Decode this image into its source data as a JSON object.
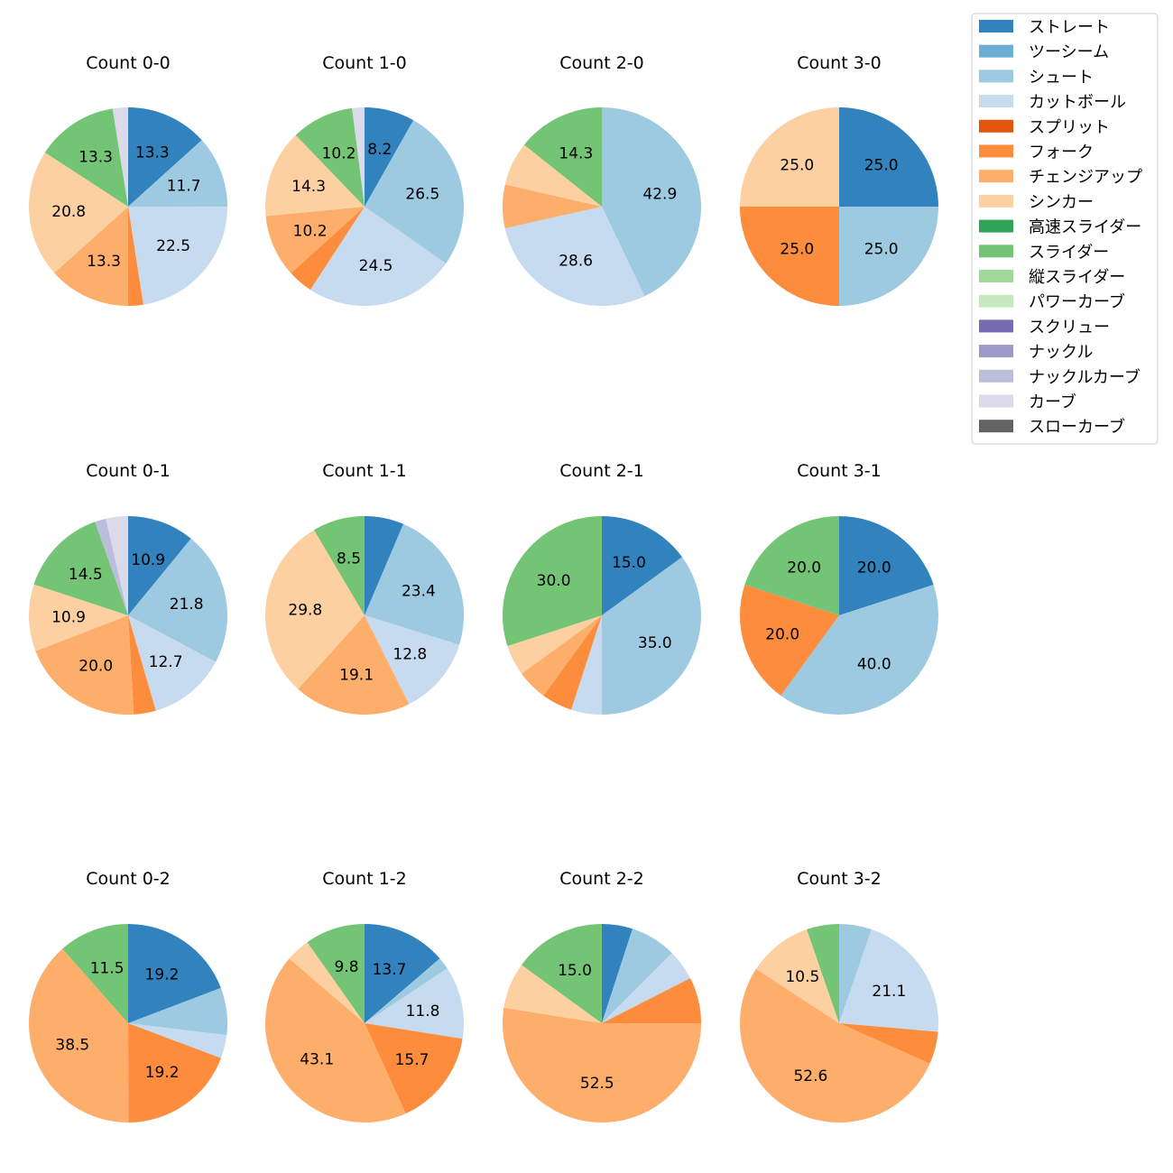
{
  "chart_data": {
    "type": "pie",
    "direction": "clockwise",
    "start": "top",
    "label_threshold_percent": 8,
    "legend": {
      "placement": "top-right",
      "entries": [
        {
          "name": "ストレート",
          "color": "#3182bd"
        },
        {
          "name": "ツーシーム",
          "color": "#6baed6"
        },
        {
          "name": "シュート",
          "color": "#9ecae1"
        },
        {
          "name": "カットボール",
          "color": "#c6dbef"
        },
        {
          "name": "スプリット",
          "color": "#e6550d"
        },
        {
          "name": "フォーク",
          "color": "#fd8d3c"
        },
        {
          "name": "チェンジアップ",
          "color": "#fdae6b"
        },
        {
          "name": "シンカー",
          "color": "#fdd0a2"
        },
        {
          "name": "高速スライダー",
          "color": "#31a354"
        },
        {
          "name": "スライダー",
          "color": "#74c476"
        },
        {
          "name": "縦スライダー",
          "color": "#a1d99b"
        },
        {
          "name": "パワーカーブ",
          "color": "#c7e9c0"
        },
        {
          "name": "スクリュー",
          "color": "#756bb1"
        },
        {
          "name": "ナックル",
          "color": "#9e9ac8"
        },
        {
          "name": "ナックルカーブ",
          "color": "#bcbddc"
        },
        {
          "name": "カーブ",
          "color": "#dadaeb"
        },
        {
          "name": "スローカーブ",
          "color": "#636363"
        }
      ]
    },
    "charts": [
      {
        "title": "Count 0-0",
        "slices": [
          [
            "ストレート",
            13.3
          ],
          [
            "シュート",
            11.7
          ],
          [
            "カットボール",
            22.5
          ],
          [
            "フォーク",
            2.5
          ],
          [
            "チェンジアップ",
            13.3
          ],
          [
            "シンカー",
            20.8
          ],
          [
            "スライダー",
            13.3
          ],
          [
            "カーブ",
            2.5
          ]
        ]
      },
      {
        "title": "Count 1-0",
        "slices": [
          [
            "ストレート",
            8.2
          ],
          [
            "シュート",
            26.5
          ],
          [
            "カットボール",
            24.5
          ],
          [
            "フォーク",
            4.1
          ],
          [
            "チェンジアップ",
            10.2
          ],
          [
            "シンカー",
            14.3
          ],
          [
            "スライダー",
            10.2
          ],
          [
            "カーブ",
            2.0
          ]
        ]
      },
      {
        "title": "Count 2-0",
        "slices": [
          [
            "シュート",
            42.9
          ],
          [
            "カットボール",
            28.6
          ],
          [
            "チェンジアップ",
            7.1
          ],
          [
            "シンカー",
            7.1
          ],
          [
            "スライダー",
            14.3
          ]
        ]
      },
      {
        "title": "Count 3-0",
        "slices": [
          [
            "ストレート",
            25.0
          ],
          [
            "シュート",
            25.0
          ],
          [
            "フォーク",
            25.0
          ],
          [
            "シンカー",
            25.0
          ]
        ]
      },
      {
        "title": "Count 0-1",
        "slices": [
          [
            "ストレート",
            10.9
          ],
          [
            "シュート",
            21.8
          ],
          [
            "カットボール",
            12.7
          ],
          [
            "フォーク",
            3.6
          ],
          [
            "チェンジアップ",
            20.0
          ],
          [
            "シンカー",
            10.9
          ],
          [
            "スライダー",
            14.5
          ],
          [
            "ナックルカーブ",
            1.8
          ],
          [
            "カーブ",
            3.6
          ]
        ]
      },
      {
        "title": "Count 1-1",
        "slices": [
          [
            "ストレート",
            6.4
          ],
          [
            "シュート",
            23.4
          ],
          [
            "カットボール",
            12.8
          ],
          [
            "チェンジアップ",
            19.1
          ],
          [
            "シンカー",
            29.8
          ],
          [
            "スライダー",
            8.5
          ]
        ]
      },
      {
        "title": "Count 2-1",
        "slices": [
          [
            "ストレート",
            15.0
          ],
          [
            "シュート",
            35.0
          ],
          [
            "カットボール",
            5.0
          ],
          [
            "フォーク",
            5.0
          ],
          [
            "チェンジアップ",
            5.0
          ],
          [
            "シンカー",
            5.0
          ],
          [
            "スライダー",
            30.0
          ]
        ]
      },
      {
        "title": "Count 3-1",
        "slices": [
          [
            "ストレート",
            20.0
          ],
          [
            "シュート",
            40.0
          ],
          [
            "フォーク",
            20.0
          ],
          [
            "スライダー",
            20.0
          ]
        ]
      },
      {
        "title": "Count 0-2",
        "slices": [
          [
            "ストレート",
            19.2
          ],
          [
            "シュート",
            7.7
          ],
          [
            "カットボール",
            3.8
          ],
          [
            "フォーク",
            19.2
          ],
          [
            "チェンジアップ",
            38.5
          ],
          [
            "スライダー",
            11.5
          ]
        ]
      },
      {
        "title": "Count 1-2",
        "slices": [
          [
            "ストレート",
            13.7
          ],
          [
            "シュート",
            2.0
          ],
          [
            "カットボール",
            11.8
          ],
          [
            "フォーク",
            15.7
          ],
          [
            "チェンジアップ",
            43.1
          ],
          [
            "シンカー",
            3.9
          ],
          [
            "スライダー",
            9.8
          ]
        ]
      },
      {
        "title": "Count 2-2",
        "slices": [
          [
            "ストレート",
            5.0
          ],
          [
            "シュート",
            7.5
          ],
          [
            "カットボール",
            5.0
          ],
          [
            "フォーク",
            7.5
          ],
          [
            "チェンジアップ",
            52.5
          ],
          [
            "シンカー",
            7.5
          ],
          [
            "スライダー",
            15.0
          ]
        ]
      },
      {
        "title": "Count 3-2",
        "slices": [
          [
            "シュート",
            5.3
          ],
          [
            "カットボール",
            21.1
          ],
          [
            "フォーク",
            5.3
          ],
          [
            "チェンジアップ",
            52.6
          ],
          [
            "シンカー",
            10.5
          ],
          [
            "スライダー",
            5.3
          ]
        ]
      }
    ]
  }
}
